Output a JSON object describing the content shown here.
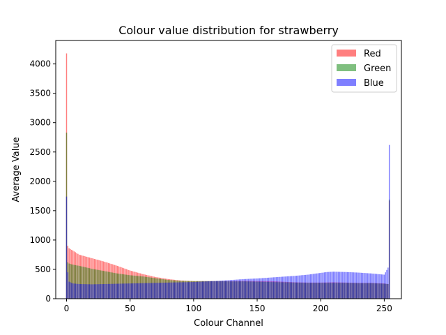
{
  "chart_data": {
    "type": "bar",
    "title": "Colour value distribution for strawberry",
    "xlabel": "Colour Channel",
    "ylabel": "Average Value",
    "xlim": [
      -8.5,
      263.5
    ],
    "ylim": [
      0,
      4400
    ],
    "xticks": [
      0,
      50,
      100,
      150,
      200,
      250
    ],
    "yticks": [
      0,
      500,
      1000,
      1500,
      2000,
      2500,
      3000,
      3500,
      4000
    ],
    "legend_position": "top-right",
    "bar_alpha": 0.5,
    "series": [
      {
        "name": "Red",
        "color": "#ff0000",
        "keypoints": [
          [
            0,
            4180
          ],
          [
            1,
            900
          ],
          [
            2,
            860
          ],
          [
            5,
            820
          ],
          [
            10,
            750
          ],
          [
            20,
            690
          ],
          [
            30,
            630
          ],
          [
            40,
            560
          ],
          [
            50,
            480
          ],
          [
            60,
            420
          ],
          [
            70,
            370
          ],
          [
            80,
            335
          ],
          [
            90,
            310
          ],
          [
            100,
            300
          ],
          [
            110,
            300
          ],
          [
            120,
            300
          ],
          [
            130,
            300
          ],
          [
            140,
            305
          ],
          [
            150,
            300
          ],
          [
            160,
            300
          ],
          [
            170,
            290
          ],
          [
            180,
            280
          ],
          [
            190,
            275
          ],
          [
            200,
            275
          ],
          [
            210,
            280
          ],
          [
            220,
            275
          ],
          [
            230,
            270
          ],
          [
            240,
            270
          ],
          [
            250,
            260
          ],
          [
            253,
            250
          ],
          [
            254,
            1670
          ],
          [
            255,
            0
          ]
        ]
      },
      {
        "name": "Green",
        "color": "#008000",
        "keypoints": [
          [
            0,
            2830
          ],
          [
            1,
            620
          ],
          [
            2,
            600
          ],
          [
            5,
            580
          ],
          [
            10,
            560
          ],
          [
            20,
            510
          ],
          [
            30,
            470
          ],
          [
            40,
            430
          ],
          [
            50,
            400
          ],
          [
            60,
            380
          ],
          [
            70,
            350
          ],
          [
            80,
            320
          ],
          [
            90,
            305
          ],
          [
            100,
            300
          ],
          [
            110,
            300
          ],
          [
            120,
            300
          ],
          [
            130,
            295
          ],
          [
            140,
            295
          ],
          [
            150,
            290
          ],
          [
            160,
            285
          ],
          [
            170,
            280
          ],
          [
            180,
            275
          ],
          [
            190,
            270
          ],
          [
            200,
            270
          ],
          [
            210,
            270
          ],
          [
            220,
            270
          ],
          [
            230,
            265
          ],
          [
            240,
            265
          ],
          [
            250,
            255
          ],
          [
            253,
            250
          ],
          [
            254,
            1690
          ],
          [
            255,
            0
          ]
        ]
      },
      {
        "name": "Blue",
        "color": "#0000ff",
        "keypoints": [
          [
            0,
            1740
          ],
          [
            1,
            450
          ],
          [
            2,
            290
          ],
          [
            5,
            260
          ],
          [
            10,
            250
          ],
          [
            20,
            245
          ],
          [
            30,
            250
          ],
          [
            40,
            255
          ],
          [
            50,
            260
          ],
          [
            60,
            265
          ],
          [
            70,
            270
          ],
          [
            80,
            275
          ],
          [
            90,
            280
          ],
          [
            100,
            285
          ],
          [
            110,
            295
          ],
          [
            120,
            305
          ],
          [
            130,
            320
          ],
          [
            140,
            335
          ],
          [
            150,
            345
          ],
          [
            160,
            360
          ],
          [
            170,
            375
          ],
          [
            180,
            390
          ],
          [
            190,
            410
          ],
          [
            200,
            440
          ],
          [
            205,
            455
          ],
          [
            210,
            460
          ],
          [
            220,
            455
          ],
          [
            230,
            445
          ],
          [
            240,
            430
          ],
          [
            250,
            410
          ],
          [
            253,
            530
          ],
          [
            254,
            2620
          ],
          [
            255,
            0
          ]
        ]
      }
    ]
  }
}
